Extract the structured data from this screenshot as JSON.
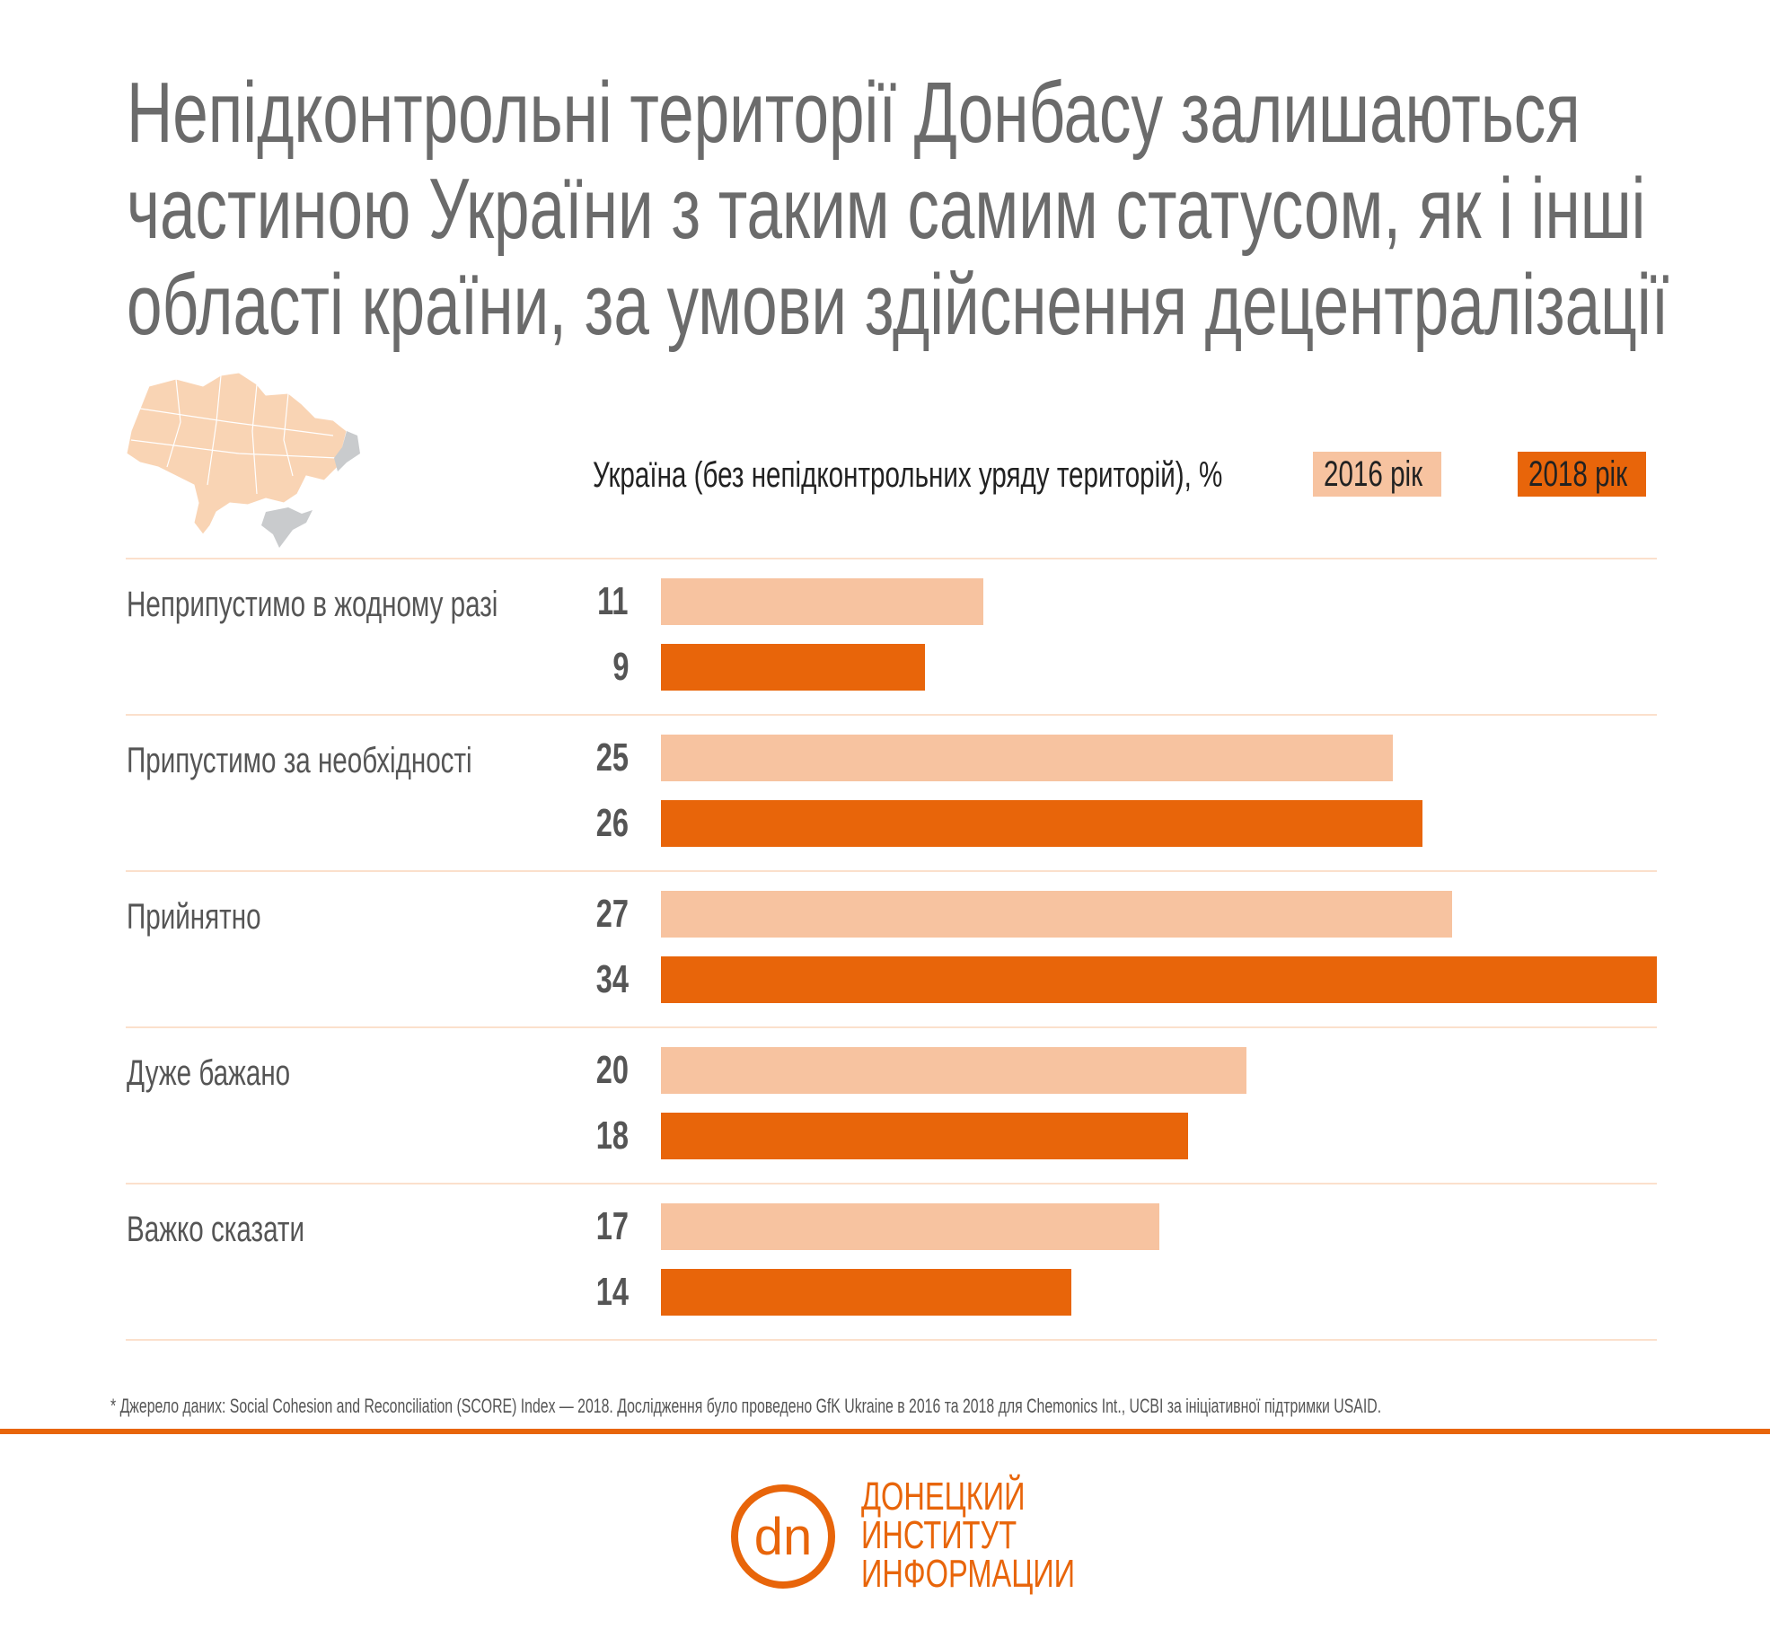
{
  "title": [
    "Непідконтрольні території Донбасу залишаються",
    "частиною України з таким самим статусом, як і інші",
    "області країни, за умови здійснення децентралізації"
  ],
  "legend": {
    "label": "Україна (без непідконтрольних уряду територій), %",
    "items": [
      {
        "name": "2016 рік",
        "color": "#f7c3a0"
      },
      {
        "name": "2018 рік",
        "color": "#e8650a"
      }
    ]
  },
  "chart_data": {
    "type": "bar",
    "orientation": "horizontal",
    "categories": [
      "Неприпустимо в жодному разі",
      "Припустимо за необхідності",
      "Прийнятно",
      "Дуже бажано",
      "Важко сказати"
    ],
    "series": [
      {
        "name": "2016 рік",
        "color": "#f7c3a0",
        "values": [
          11,
          25,
          27,
          20,
          17
        ]
      },
      {
        "name": "2018 рік",
        "color": "#e8650a",
        "values": [
          9,
          26,
          34,
          18,
          14
        ]
      }
    ],
    "unit": "%",
    "xlim": [
      0,
      34
    ],
    "grid": false,
    "legend_position": "top-right"
  },
  "map": {
    "icon": "ukraine-map-icon",
    "colors": {
      "controlled": "#f9d4b4",
      "uncontrolled": "#c9cbcd"
    }
  },
  "footnote": "* Джерело даних: Social Cohesion and Reconciliation (SCORE)  Index — 2018. Дослідження було проведено GfK Ukraine в 2016 та 2018 для Chemonics Int., UCBI за ініціативної підтримки USAID.",
  "logo": {
    "mark": "dn",
    "lines": [
      "ДОНЕЦКИЙ",
      "ИНСТИТУТ",
      "ИНФОРМАЦИИ"
    ],
    "color": "#e8650a"
  }
}
